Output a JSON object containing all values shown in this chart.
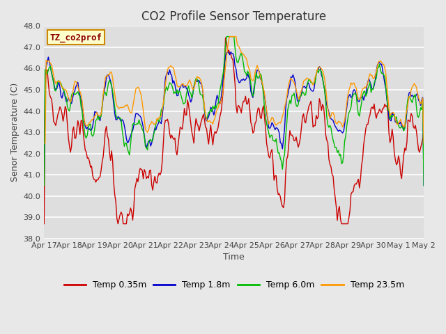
{
  "title": "CO2 Profile Sensor Temperature",
  "xlabel": "Time",
  "ylabel": "Senor Temperature (C)",
  "annotation": "TZ_co2prof",
  "annotation_color": "#8b0000",
  "annotation_bg": "#ffffcc",
  "annotation_border": "#cc8800",
  "ylim": [
    38.0,
    48.0
  ],
  "yticks": [
    38.0,
    39.0,
    40.0,
    41.0,
    42.0,
    43.0,
    44.0,
    45.0,
    46.0,
    47.0,
    48.0
  ],
  "xtick_labels": [
    "Apr 17",
    "Apr 18",
    "Apr 19",
    "Apr 20",
    "Apr 21",
    "Apr 22",
    "Apr 23",
    "Apr 24",
    "Apr 25",
    "Apr 26",
    "Apr 27",
    "Apr 28",
    "Apr 29",
    "Apr 30",
    "May 1",
    "May 2"
  ],
  "series": [
    {
      "label": "Temp 0.35m",
      "color": "#cc0000",
      "lw": 1.0
    },
    {
      "label": "Temp 1.8m",
      "color": "#0000cc",
      "lw": 1.0
    },
    {
      "label": "Temp 6.0m",
      "color": "#00bb00",
      "lw": 1.0
    },
    {
      "label": "Temp 23.5m",
      "color": "#ff9900",
      "lw": 1.0
    }
  ],
  "fig_bg": "#e8e8e8",
  "plot_bg": "#dedede",
  "grid_color": "#c8c8c8",
  "title_fontsize": 12,
  "axis_fontsize": 9,
  "tick_fontsize": 8,
  "legend_fontsize": 9
}
